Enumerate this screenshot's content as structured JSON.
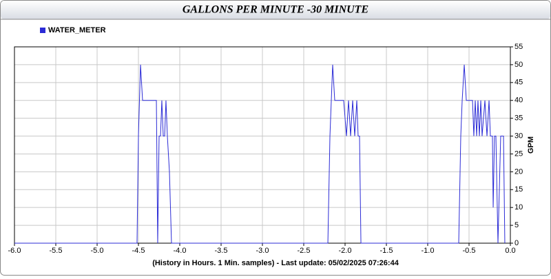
{
  "chart_data": {
    "type": "line",
    "title": "GALLONS PER MINUTE -30 MINUTE",
    "x_label": "(History in Hours. 1 Min. samples) - Last update: 05/02/2025 07:26:44",
    "y_label": "GPM",
    "x": [
      -6,
      -4.517,
      -4.5,
      -4.475,
      -4.45,
      -4.283,
      -4.267,
      -4.25,
      -4.233,
      -4.217,
      -4.2,
      -4.183,
      -4.167,
      -4.15,
      -4.125,
      -4.1,
      -2.208,
      -2.183,
      -2.15,
      -2.125,
      -2.017,
      -1.983,
      -1.958,
      -1.933,
      -1.908,
      -1.883,
      -1.858,
      -1.842,
      -1.825,
      -1.808,
      -0.625,
      -0.6,
      -0.583,
      -0.558,
      -0.533,
      -0.458,
      -0.442,
      -0.425,
      -0.408,
      -0.392,
      -0.375,
      -0.358,
      -0.342,
      -0.308,
      -0.283,
      -0.258,
      -0.242,
      -0.217,
      -0.208,
      -0.192,
      -0.175,
      -0.15,
      -0.117,
      -0.083,
      -0.067
    ],
    "series": [
      {
        "name": "WATER_METER",
        "color": "#2b2bd6",
        "values": [
          0,
          0,
          30,
          50,
          40,
          40,
          0,
          30,
          30,
          40,
          30,
          30,
          40,
          30,
          20,
          0,
          0,
          30,
          50,
          40,
          40,
          30,
          40,
          30,
          40,
          30,
          40,
          30,
          30,
          0,
          0,
          30,
          40,
          50,
          40,
          40,
          30,
          40,
          30,
          40,
          30,
          40,
          30,
          40,
          30,
          40,
          30,
          30,
          10,
          30,
          30,
          0,
          30,
          30,
          0
        ]
      }
    ],
    "xlim": [
      -6,
      0
    ],
    "ylim": [
      0,
      55
    ],
    "xticks": [
      {
        "value": -6,
        "label": "-6.0"
      },
      {
        "value": -5.5,
        "label": "-5.5"
      },
      {
        "value": -5,
        "label": "-5.0"
      },
      {
        "value": -4.5,
        "label": "-4.5"
      },
      {
        "value": -4,
        "label": "-4.0"
      },
      {
        "value": -3.5,
        "label": "-3.5"
      },
      {
        "value": -3,
        "label": "-3.0"
      },
      {
        "value": -2.5,
        "label": "-2.5"
      },
      {
        "value": -2,
        "label": "-2.0"
      },
      {
        "value": -1.5,
        "label": "-1.5"
      },
      {
        "value": -1,
        "label": "-1.0"
      },
      {
        "value": -0.5,
        "label": "-0.5"
      },
      {
        "value": 0,
        "label": "0.0"
      }
    ],
    "yticks": [
      0,
      5,
      10,
      15,
      20,
      25,
      30,
      35,
      40,
      45,
      50,
      55
    ],
    "grid": true,
    "legend": "top-left",
    "y_axis_side": "right"
  }
}
